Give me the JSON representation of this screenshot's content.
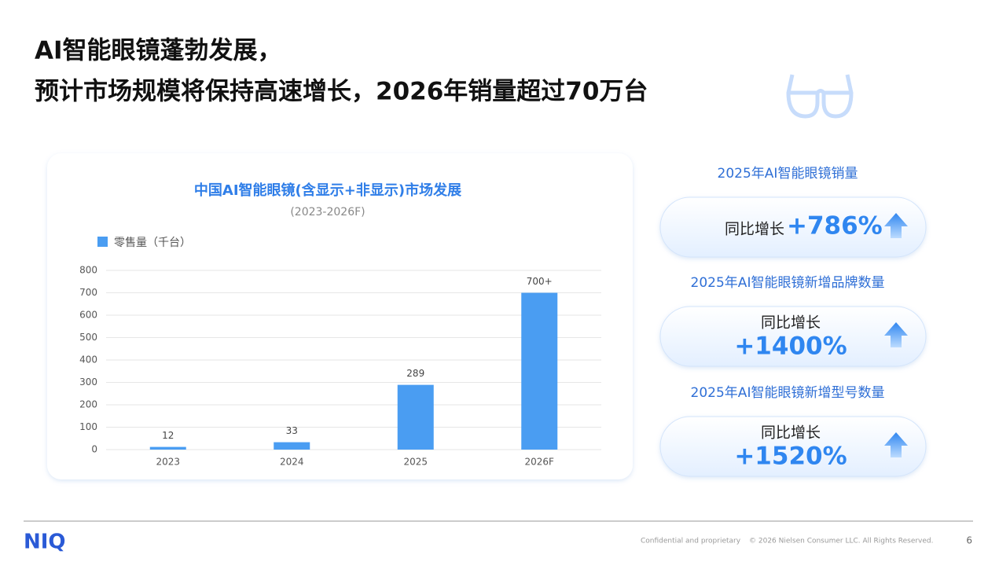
{
  "header": {
    "title_lines": [
      "AI智能眼镜蓬勃发展，",
      "预计市场规模将保持高速增长，2026年销量超过70万台"
    ]
  },
  "chart_data": {
    "type": "bar",
    "title": "中国AI智能眼镜(含显示+非显示)市场发展",
    "subtitle": "(2023-2026F)",
    "legend": "零售量（千台）",
    "categories": [
      "2023",
      "2024",
      "2025",
      "2026F"
    ],
    "values": [
      12,
      33,
      289,
      700
    ],
    "value_labels": [
      "12",
      "33",
      "289",
      "700+"
    ],
    "color": "#4a9df2",
    "ylim": [
      0,
      800
    ],
    "yticks": [
      0,
      100,
      200,
      300,
      400,
      500,
      600,
      700,
      800
    ],
    "grid": true
  },
  "stats": [
    {
      "heading": "2025年AI智能眼镜销量",
      "label": "同比增长",
      "value": "+786%"
    },
    {
      "heading": "2025年AI智能眼镜新增品牌数量",
      "label": "同比增长",
      "value": "+1400%"
    },
    {
      "heading": "2025年AI智能眼镜新增型号数量",
      "label": "同比增长",
      "value": "+1520%"
    }
  ],
  "footer": {
    "logo": "NIQ",
    "confidential": "Confidential and proprietary",
    "copyright": "© 2026 Nielsen Consumer LLC. All Rights Reserved.",
    "page": "6"
  }
}
